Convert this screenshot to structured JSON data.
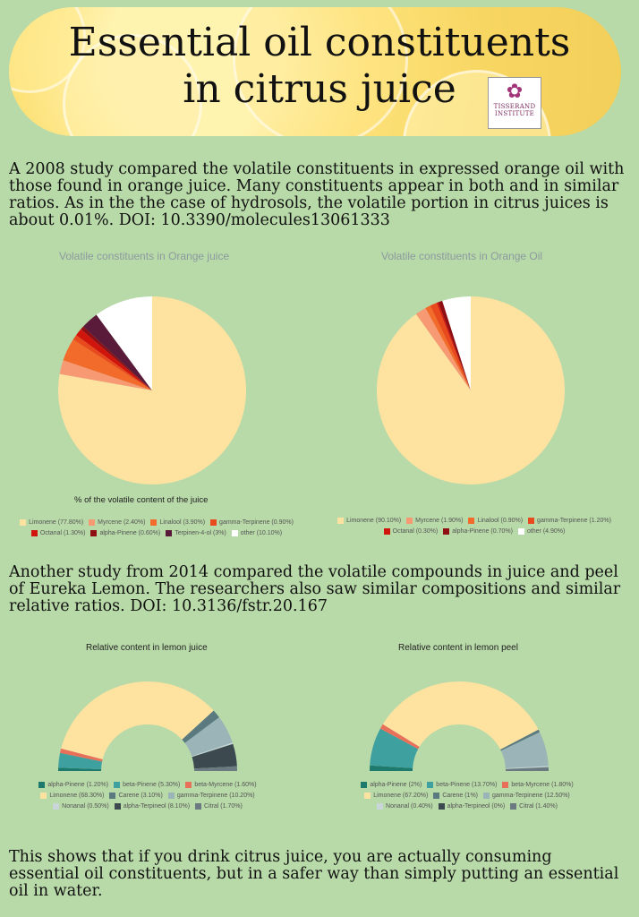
{
  "header": {
    "title_line1": "Essential oil constituents",
    "title_line2": "in citrus juice",
    "logo_line1": "TISSERAND",
    "logo_line2": "INSTITUTE"
  },
  "intro_text": "A 2008 study compared the volatile constituents in expressed orange oil with those found in orange juice. Many constituents appear in both and in similar ratios. As in the the case of hydrosols, the volatile portion in citrus juices is about 0.01%. DOI: 10.3390/molecules13061333",
  "middle_text": "Another study from 2014 compared the volatile compounds in juice and peel of Eureka Lemon. The researchers also saw similar compositions and similar relative ratios. DOI: 10.3136/fstr.20.167",
  "outro_text": "This shows that if you drink citrus juice, you are actually consuming essential oil constituents, but in a safer way than simply putting an essential oil in water.",
  "chart_data": [
    {
      "type": "pie",
      "title": "Volatile constituents in Orange juice",
      "caption": "% of the volatile content of the juice",
      "slices": [
        {
          "label": "Limonene (77.80%)",
          "value": 77.8,
          "color": "#fde2a0"
        },
        {
          "label": "Myrcene (2.40%)",
          "value": 2.4,
          "color": "#f79a74"
        },
        {
          "label": "Linalool (3.90%)",
          "value": 3.9,
          "color": "#f26b2a"
        },
        {
          "label": "gamma-Terpinene (0.90%)",
          "value": 0.9,
          "color": "#e84a1e"
        },
        {
          "label": "Octanal (1.30%)",
          "value": 1.3,
          "color": "#d0150d"
        },
        {
          "label": "alpha-Pinene (0.60%)",
          "value": 0.6,
          "color": "#8e0e14"
        },
        {
          "label": "Terpinen-4-ol (3%)",
          "value": 3.0,
          "color": "#5a1a3a"
        },
        {
          "label": "other (10.10%)",
          "value": 10.1,
          "color": "#ffffff"
        }
      ]
    },
    {
      "type": "pie",
      "title": "Volatile constituents in Orange Oil",
      "slices": [
        {
          "label": "Limonene (90.10%)",
          "value": 90.1,
          "color": "#fde2a0"
        },
        {
          "label": "Myrcene (1.90%)",
          "value": 1.9,
          "color": "#f79a74"
        },
        {
          "label": "Linalool (0.90%)",
          "value": 0.9,
          "color": "#f26b2a"
        },
        {
          "label": "gamma-Terpinene (1.20%)",
          "value": 1.2,
          "color": "#e84a1e"
        },
        {
          "label": "Octanal (0.30%)",
          "value": 0.3,
          "color": "#d0150d"
        },
        {
          "label": "alpha-Pinene (0.70%)",
          "value": 0.7,
          "color": "#8e0e14"
        },
        {
          "label": "other (4.90%)",
          "value": 4.9,
          "color": "#ffffff"
        }
      ]
    },
    {
      "type": "pie",
      "title": "Relative content in lemon juice",
      "slices": [
        {
          "label": "alpha-Pinene (1.20%)",
          "value": 1.2,
          "color": "#1f7a6e"
        },
        {
          "label": "beta-Pinene (5.30%)",
          "value": 5.3,
          "color": "#3fa0a0"
        },
        {
          "label": "beta-Myrcene (1.60%)",
          "value": 1.6,
          "color": "#e8705a"
        },
        {
          "label": "Limonene (68.30%)",
          "value": 68.3,
          "color": "#fde2a0"
        },
        {
          "label": "Carene (3.10%)",
          "value": 3.1,
          "color": "#5a7a80"
        },
        {
          "label": "gamma-Terpinene (10.20%)",
          "value": 10.2,
          "color": "#9ab4b8"
        },
        {
          "label": "Nonanal (0.50%)",
          "value": 0.5,
          "color": "#c8d6da"
        },
        {
          "label": "alpha-Terpineol (8.10%)",
          "value": 8.1,
          "color": "#3c4a50"
        },
        {
          "label": "Citral (1.70%)",
          "value": 1.7,
          "color": "#6a7a80"
        }
      ]
    },
    {
      "type": "pie",
      "title": "Relative content in lemon peel",
      "slices": [
        {
          "label": "alpha-Pinene (2%)",
          "value": 2.0,
          "color": "#1f7a6e"
        },
        {
          "label": "beta-Pinene (13.70%)",
          "value": 13.7,
          "color": "#3fa0a0"
        },
        {
          "label": "beta-Myrcene (1.80%)",
          "value": 1.8,
          "color": "#e8705a"
        },
        {
          "label": "Limonene (67.20%)",
          "value": 67.2,
          "color": "#fde2a0"
        },
        {
          "label": "Carene (1%)",
          "value": 1.0,
          "color": "#5a7a80"
        },
        {
          "label": "gamma-Terpinene (12.50%)",
          "value": 12.5,
          "color": "#9ab4b8"
        },
        {
          "label": "Nonanal (0.40%)",
          "value": 0.4,
          "color": "#c8d6da"
        },
        {
          "label": "alpha-Terpineol (0%)",
          "value": 0,
          "color": "#3c4a50"
        },
        {
          "label": "Citral (1.40%)",
          "value": 1.4,
          "color": "#6a7a80"
        }
      ]
    }
  ]
}
